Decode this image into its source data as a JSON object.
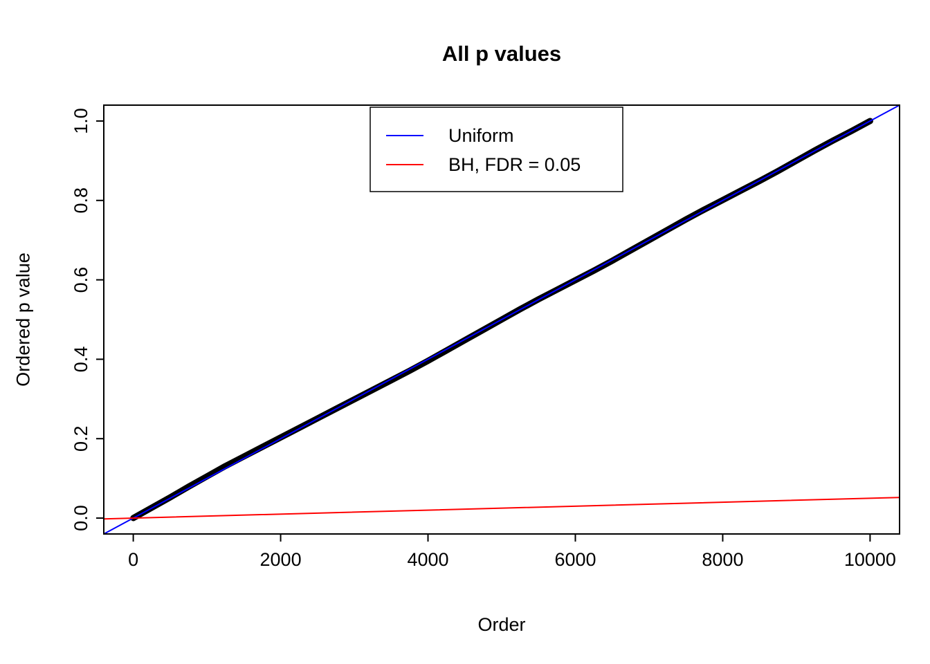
{
  "chart_data": {
    "type": "scatter",
    "title": "All p values",
    "xlabel": "Order",
    "ylabel": "Ordered p value",
    "xlim": [
      -400,
      10400
    ],
    "ylim": [
      -0.04,
      1.04
    ],
    "grid": false,
    "x_ticks": {
      "values": [
        0,
        2000,
        4000,
        6000,
        8000,
        10000
      ],
      "labels": [
        "0",
        "2000",
        "4000",
        "6000",
        "8000",
        "10000"
      ]
    },
    "y_ticks": {
      "values": [
        0.0,
        0.2,
        0.4,
        0.6,
        0.8,
        1.0
      ],
      "labels": [
        "0.0",
        "0.2",
        "0.4",
        "0.6",
        "0.8",
        "1.0"
      ]
    },
    "series": [
      {
        "name": "Ordered p values",
        "kind": "band",
        "color": "#000000",
        "band_width": 9,
        "x": [
          1,
          250,
          500,
          750,
          1000,
          1250,
          1500,
          1750,
          2000,
          2250,
          2500,
          2750,
          3000,
          3250,
          3500,
          3750,
          4000,
          4250,
          4500,
          4750,
          5000,
          5250,
          5500,
          5750,
          6000,
          6250,
          6500,
          6750,
          7000,
          7250,
          7500,
          7750,
          8000,
          8250,
          8500,
          8750,
          9000,
          9250,
          9500,
          9750,
          10000
        ],
        "y": [
          0.0001,
          0.026,
          0.052,
          0.079,
          0.105,
          0.131,
          0.155,
          0.179,
          0.203,
          0.227,
          0.251,
          0.275,
          0.299,
          0.323,
          0.347,
          0.371,
          0.396,
          0.422,
          0.448,
          0.474,
          0.5,
          0.526,
          0.551,
          0.575,
          0.599,
          0.623,
          0.648,
          0.674,
          0.7,
          0.726,
          0.752,
          0.777,
          0.801,
          0.825,
          0.849,
          0.874,
          0.9,
          0.926,
          0.951,
          0.975,
          1.0
        ]
      },
      {
        "name": "Uniform",
        "kind": "line",
        "color": "#0000ff",
        "line_width": 2,
        "x": [
          -400,
          10400
        ],
        "y": [
          -0.04,
          1.04
        ]
      },
      {
        "name": "BH, FDR = 0.05",
        "kind": "line",
        "color": "#ff0000",
        "line_width": 2,
        "x": [
          -400,
          10400
        ],
        "y": [
          -0.002,
          0.052
        ]
      }
    ],
    "legend_position": "top-center",
    "legend": [
      {
        "label": "Uniform",
        "color": "#0000ff"
      },
      {
        "label": "BH, FDR = 0.05",
        "color": "#ff0000"
      }
    ],
    "frame_color": "#000000"
  }
}
